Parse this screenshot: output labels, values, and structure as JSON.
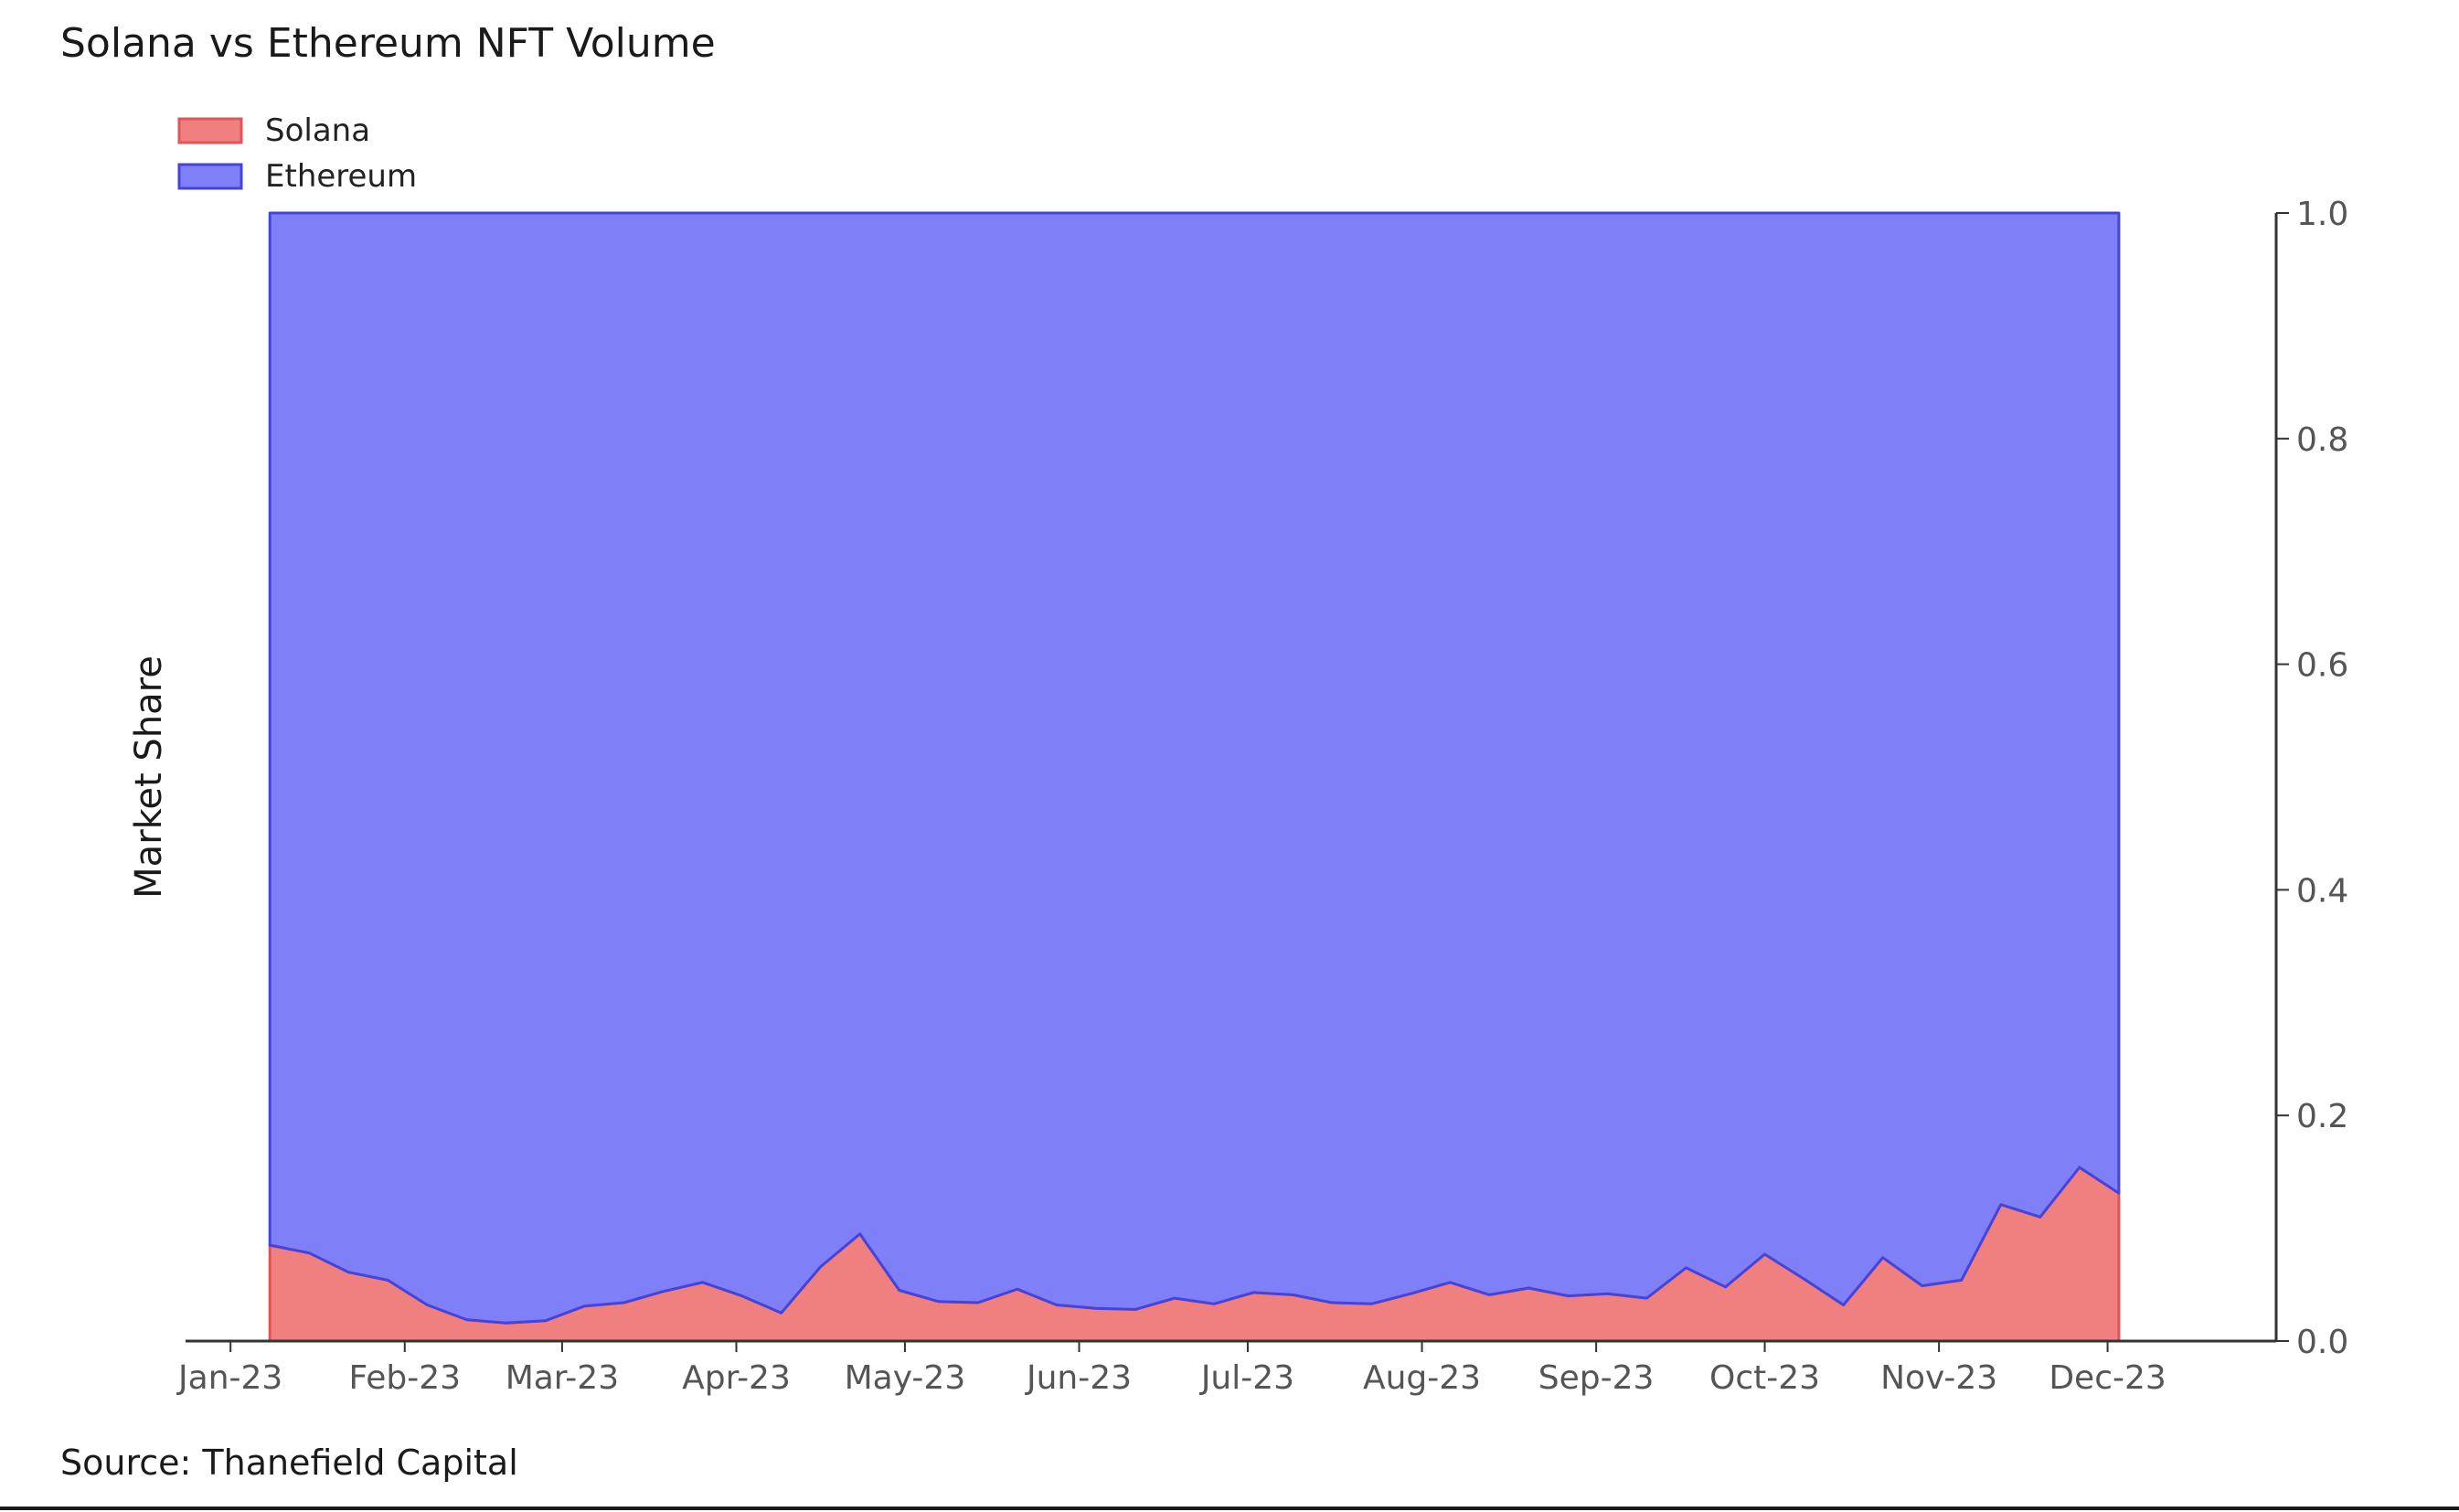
{
  "title": "Solana vs Ethereum NFT Volume",
  "source": "Source: Thanefield Capital",
  "chart_data": {
    "type": "area",
    "stacked": true,
    "title": "Solana vs Ethereum NFT Volume",
    "xlabel": "",
    "ylabel": "Market Share",
    "ylim": [
      0,
      1.0
    ],
    "y_axis_side": "right",
    "y_ticks": [
      "0.0",
      "0.2",
      "0.4",
      "0.6",
      "0.8",
      "1.0"
    ],
    "x_ticks": [
      {
        "label": "Jan-23",
        "date": "2023-01-01"
      },
      {
        "label": "Feb-23",
        "date": "2023-02-01"
      },
      {
        "label": "Mar-23",
        "date": "2023-03-01"
      },
      {
        "label": "Apr-23",
        "date": "2023-04-01"
      },
      {
        "label": "May-23",
        "date": "2023-05-01"
      },
      {
        "label": "Jun-23",
        "date": "2023-06-01"
      },
      {
        "label": "Jul-23",
        "date": "2023-07-01"
      },
      {
        "label": "Aug-23",
        "date": "2023-08-01"
      },
      {
        "label": "Sep-23",
        "date": "2023-09-01"
      },
      {
        "label": "Oct-23",
        "date": "2023-10-01"
      },
      {
        "label": "Nov-23",
        "date": "2023-11-01"
      },
      {
        "label": "Dec-23",
        "date": "2023-12-01"
      }
    ],
    "x_range": [
      "2022-12-24",
      "2023-12-31"
    ],
    "legend_position": "top-left",
    "grid": false,
    "x": [
      "2023-01-08",
      "2023-01-15",
      "2023-01-22",
      "2023-01-29",
      "2023-02-05",
      "2023-02-12",
      "2023-02-19",
      "2023-02-26",
      "2023-03-05",
      "2023-03-12",
      "2023-03-19",
      "2023-03-26",
      "2023-04-02",
      "2023-04-09",
      "2023-04-16",
      "2023-04-23",
      "2023-04-30",
      "2023-05-07",
      "2023-05-14",
      "2023-05-21",
      "2023-05-28",
      "2023-06-04",
      "2023-06-11",
      "2023-06-18",
      "2023-06-25",
      "2023-07-02",
      "2023-07-09",
      "2023-07-16",
      "2023-07-23",
      "2023-07-30",
      "2023-08-06",
      "2023-08-13",
      "2023-08-20",
      "2023-08-27",
      "2023-09-03",
      "2023-09-10",
      "2023-09-17",
      "2023-09-24",
      "2023-10-01",
      "2023-10-08",
      "2023-10-15",
      "2023-10-22",
      "2023-10-29",
      "2023-11-05",
      "2023-11-12",
      "2023-11-19",
      "2023-11-26",
      "2023-12-03"
    ],
    "series": [
      {
        "name": "Solana",
        "color": "#f08080",
        "edge_color": "#e05555",
        "values": [
          0.085,
          0.078,
          0.061,
          0.054,
          0.032,
          0.019,
          0.016,
          0.018,
          0.031,
          0.034,
          0.044,
          0.052,
          0.04,
          0.025,
          0.066,
          0.095,
          0.045,
          0.035,
          0.034,
          0.046,
          0.032,
          0.029,
          0.028,
          0.038,
          0.033,
          0.043,
          0.041,
          0.034,
          0.033,
          0.042,
          0.052,
          0.041,
          0.047,
          0.04,
          0.042,
          0.038,
          0.065,
          0.048,
          0.077,
          0.055,
          0.032,
          0.074,
          0.049,
          0.054,
          0.121,
          0.11,
          0.154,
          0.131
        ]
      },
      {
        "name": "Ethereum",
        "color": "#7f7ff7",
        "edge_color": "#4444dd",
        "values": [
          0.915,
          0.922,
          0.939,
          0.946,
          0.968,
          0.981,
          0.984,
          0.982,
          0.969,
          0.966,
          0.956,
          0.948,
          0.96,
          0.975,
          0.934,
          0.905,
          0.955,
          0.965,
          0.966,
          0.954,
          0.968,
          0.971,
          0.972,
          0.962,
          0.967,
          0.957,
          0.959,
          0.966,
          0.967,
          0.958,
          0.948,
          0.959,
          0.953,
          0.96,
          0.958,
          0.962,
          0.935,
          0.952,
          0.923,
          0.945,
          0.968,
          0.926,
          0.951,
          0.946,
          0.879,
          0.89,
          0.846,
          0.869
        ]
      }
    ]
  }
}
